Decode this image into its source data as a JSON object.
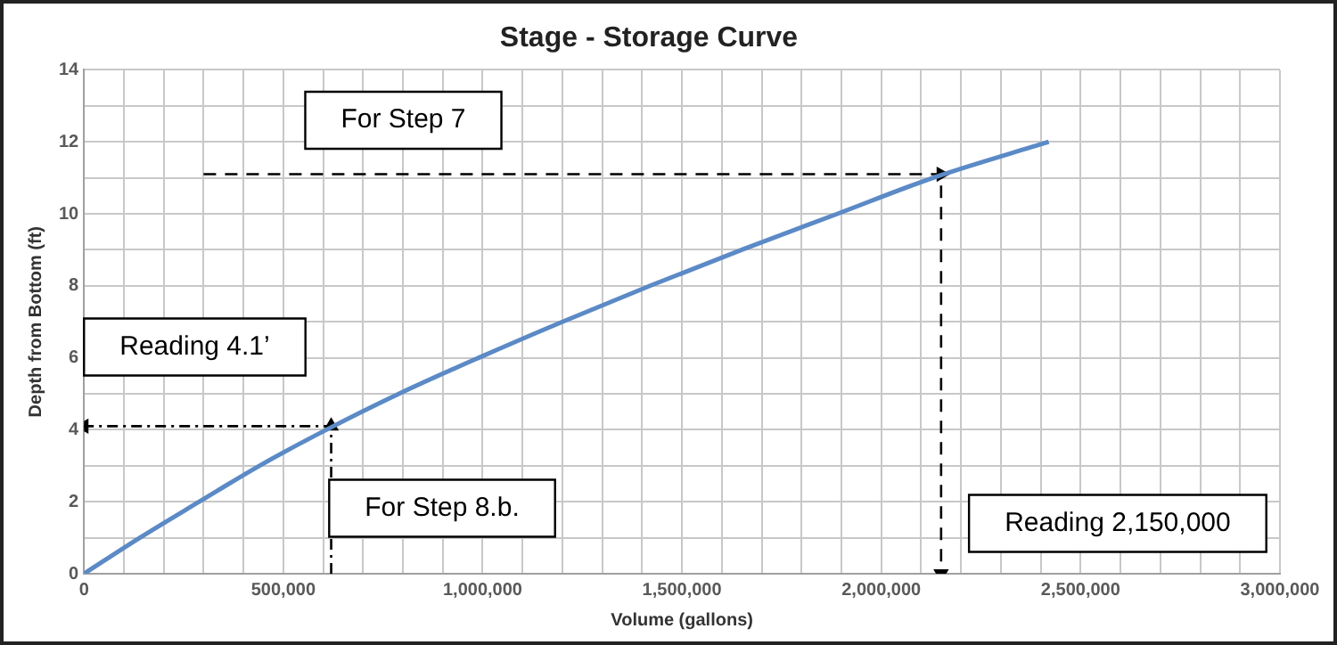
{
  "chart_data": {
    "type": "line",
    "title": "Stage - Storage Curve",
    "xlabel": "Volume (gallons)",
    "ylabel": "Depth from Bottom (ft)",
    "x": [
      0,
      140000,
      289000,
      440000,
      608000,
      790000,
      990000,
      1200000,
      1420000,
      1650000,
      1890000,
      2130000,
      2420000
    ],
    "series": [
      {
        "color": "#5b8ac6",
        "values": [
          0,
          1,
          2,
          3,
          4,
          5,
          6,
          7,
          8,
          9,
          10,
          11,
          12
        ]
      },
      {
        "type": "line",
        "color": "#000000",
        "line_style": "dashed",
        "marker": "triangle",
        "x": [
          300000,
          2150000,
          2150000
        ],
        "values": [
          11.1,
          11.1,
          0
        ]
      },
      {
        "type": "line",
        "color": "#000000",
        "line_style": "dotted",
        "marker": "triangle",
        "x": [
          620000,
          620000,
          0
        ],
        "values": [
          0,
          4.1,
          4.1
        ]
      }
    ],
    "xlim": [
      0,
      3000000
    ],
    "xticks": [
      0,
      {
        "value": 100000,
        "label": null
      },
      {
        "value": 200000,
        "label": null
      },
      {
        "value": 300000,
        "label": null
      },
      {
        "value": 400000,
        "label": null
      },
      {
        "value": 500000,
        "label": "500,000"
      },
      {
        "value": 600000,
        "label": null
      },
      {
        "value": 700000,
        "label": null
      },
      {
        "value": 800000,
        "label": null
      },
      {
        "value": 900000,
        "label": null
      },
      {
        "value": 1000000,
        "label": "1,000,000"
      },
      {
        "value": 1100000,
        "label": null
      },
      {
        "value": 1200000,
        "label": null
      },
      {
        "value": 1300000,
        "label": null
      },
      {
        "value": 1400000,
        "label": null
      },
      {
        "value": 1500000,
        "label": "1,500,000"
      },
      {
        "value": 1600000,
        "label": null
      },
      {
        "value": 1700000,
        "label": null
      },
      {
        "value": 1800000,
        "label": null
      },
      {
        "value": 1900000,
        "label": null
      },
      {
        "value": 2000000,
        "label": "2,000,000"
      },
      {
        "value": 2100000,
        "label": null
      },
      {
        "value": 2200000,
        "label": null
      },
      {
        "value": 2300000,
        "label": null
      },
      {
        "value": 2400000,
        "label": null
      },
      {
        "value": 2500000,
        "label": "2,500,000"
      },
      {
        "value": 2600000,
        "label": null
      },
      {
        "value": 2700000,
        "label": null
      },
      {
        "value": 2800000,
        "label": null
      },
      {
        "value": 2900000,
        "label": null
      },
      {
        "value": 3000000,
        "label": "3,000,000"
      }
    ],
    "ylim": [
      0,
      14
    ],
    "yticks": [
      0,
      {
        "value": 1,
        "label": null
      },
      2,
      {
        "value": 3,
        "label": null
      },
      4,
      {
        "value": 5,
        "label": null
      },
      6,
      {
        "value": 7,
        "label": null
      },
      8,
      {
        "value": 9,
        "label": null
      },
      10,
      {
        "value": 11,
        "label": null
      },
      12,
      {
        "value": 13,
        "label": null
      },
      14
    ],
    "grid": true,
    "legend": false,
    "marker": "none",
    "line_style": "solid",
    "annotations": [
      "For Step 7",
      "Reading 2,150,000",
      "For Step 8.b.",
      "Reading 4.1’"
    ]
  }
}
